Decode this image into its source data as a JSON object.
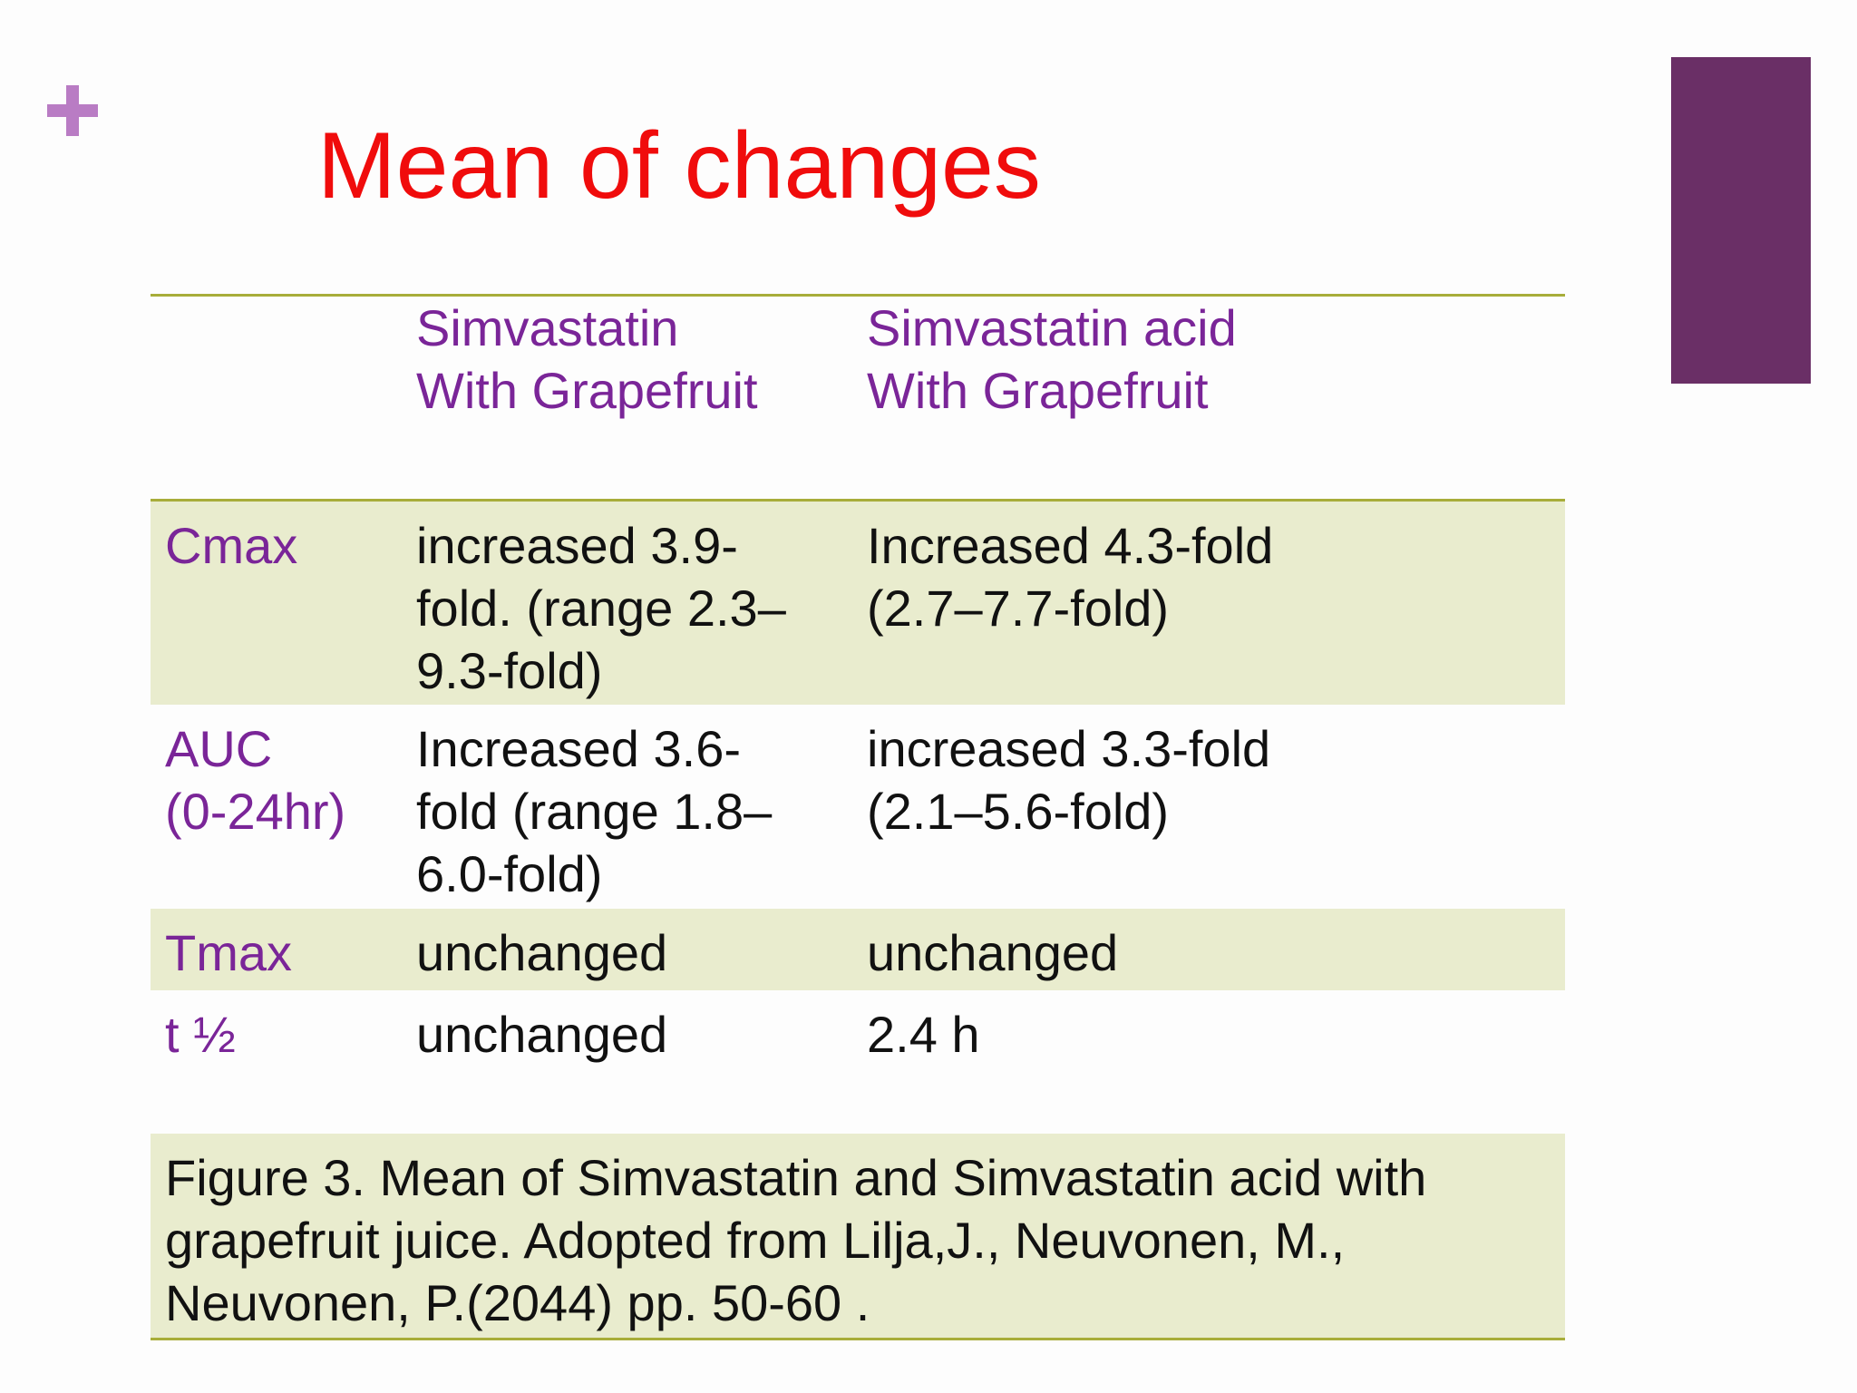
{
  "slide": {
    "title": "Mean of changes",
    "accent_color": "#6a2f66",
    "title_color": "#f00c0c",
    "icon": "plus-icon"
  },
  "table": {
    "headers": [
      "",
      "Simvastatin\nWith Grapefruit",
      "Simvastatin acid\nWith Grapefruit"
    ],
    "rows": [
      {
        "label": "Cmax",
        "simvastatin": "increased 3.9-\nfold. (range 2.3–\n9.3-fold)",
        "simvastatin_acid": "Increased 4.3-fold\n(2.7–7.7-fold)"
      },
      {
        "label": "AUC\n(0-24hr)",
        "simvastatin": " Increased 3.6-\nfold  (range 1.8–\n6.0-fold)",
        "simvastatin_acid": "increased 3.3-fold\n(2.1–5.6-fold)"
      },
      {
        "label": "Tmax",
        "simvastatin": " unchanged",
        "simvastatin_acid": "unchanged"
      },
      {
        "label": "t ½",
        "simvastatin": "unchanged",
        "simvastatin_acid": "2.4 h"
      }
    ]
  },
  "caption": "Figure 3. Mean of Simvastatin and Simvastatin acid with\ngrapefruit juice. Adopted from Lilja,J., Neuvonen, M.,\nNeuvonen, P.(2044) pp. 50-60 ."
}
